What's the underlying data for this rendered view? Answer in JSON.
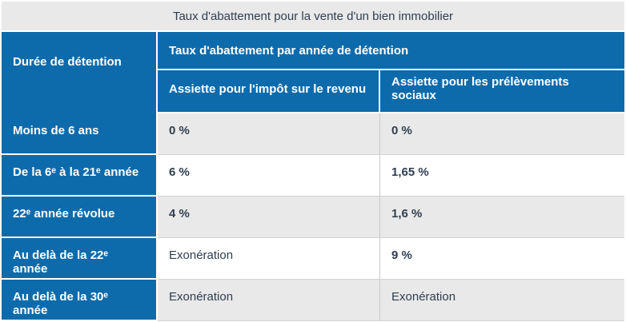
{
  "table": {
    "caption": "Taux d'abattement pour la vente d'un bien immobilier",
    "corner_header": "Durée de détention",
    "group_header": "Taux d'abattement par année de détention",
    "sub_headers": [
      "Assiette pour l'impôt sur le revenu",
      "Assiette pour les prélèvements sociaux"
    ],
    "rows": [
      {
        "label": "Moins de 6 ans",
        "ir": "0 %",
        "ps": "0 %"
      },
      {
        "label": "De la 6ᵉ à la 21ᵉ année",
        "ir": "6 %",
        "ps": "1,65 %"
      },
      {
        "label": "22ᵉ année révolue",
        "ir": "4 %",
        "ps": "1,6 %"
      },
      {
        "label": "Au delà de la 22ᵉ année",
        "ir": "Exonération",
        "ps": "9 %"
      },
      {
        "label": "Au delà de la 30ᵉ année",
        "ir": "Exonération",
        "ps": "Exonération"
      }
    ]
  },
  "colors": {
    "header_blue": "#0d6bac",
    "caption_gray": "#e9e9e9",
    "zebra_gray": "#e9e9e9",
    "text_dark": "#2e3e50",
    "header_text": "#ffffff",
    "row_separator": "#d2d2d2",
    "column_separator": "#c9c9c9"
  }
}
